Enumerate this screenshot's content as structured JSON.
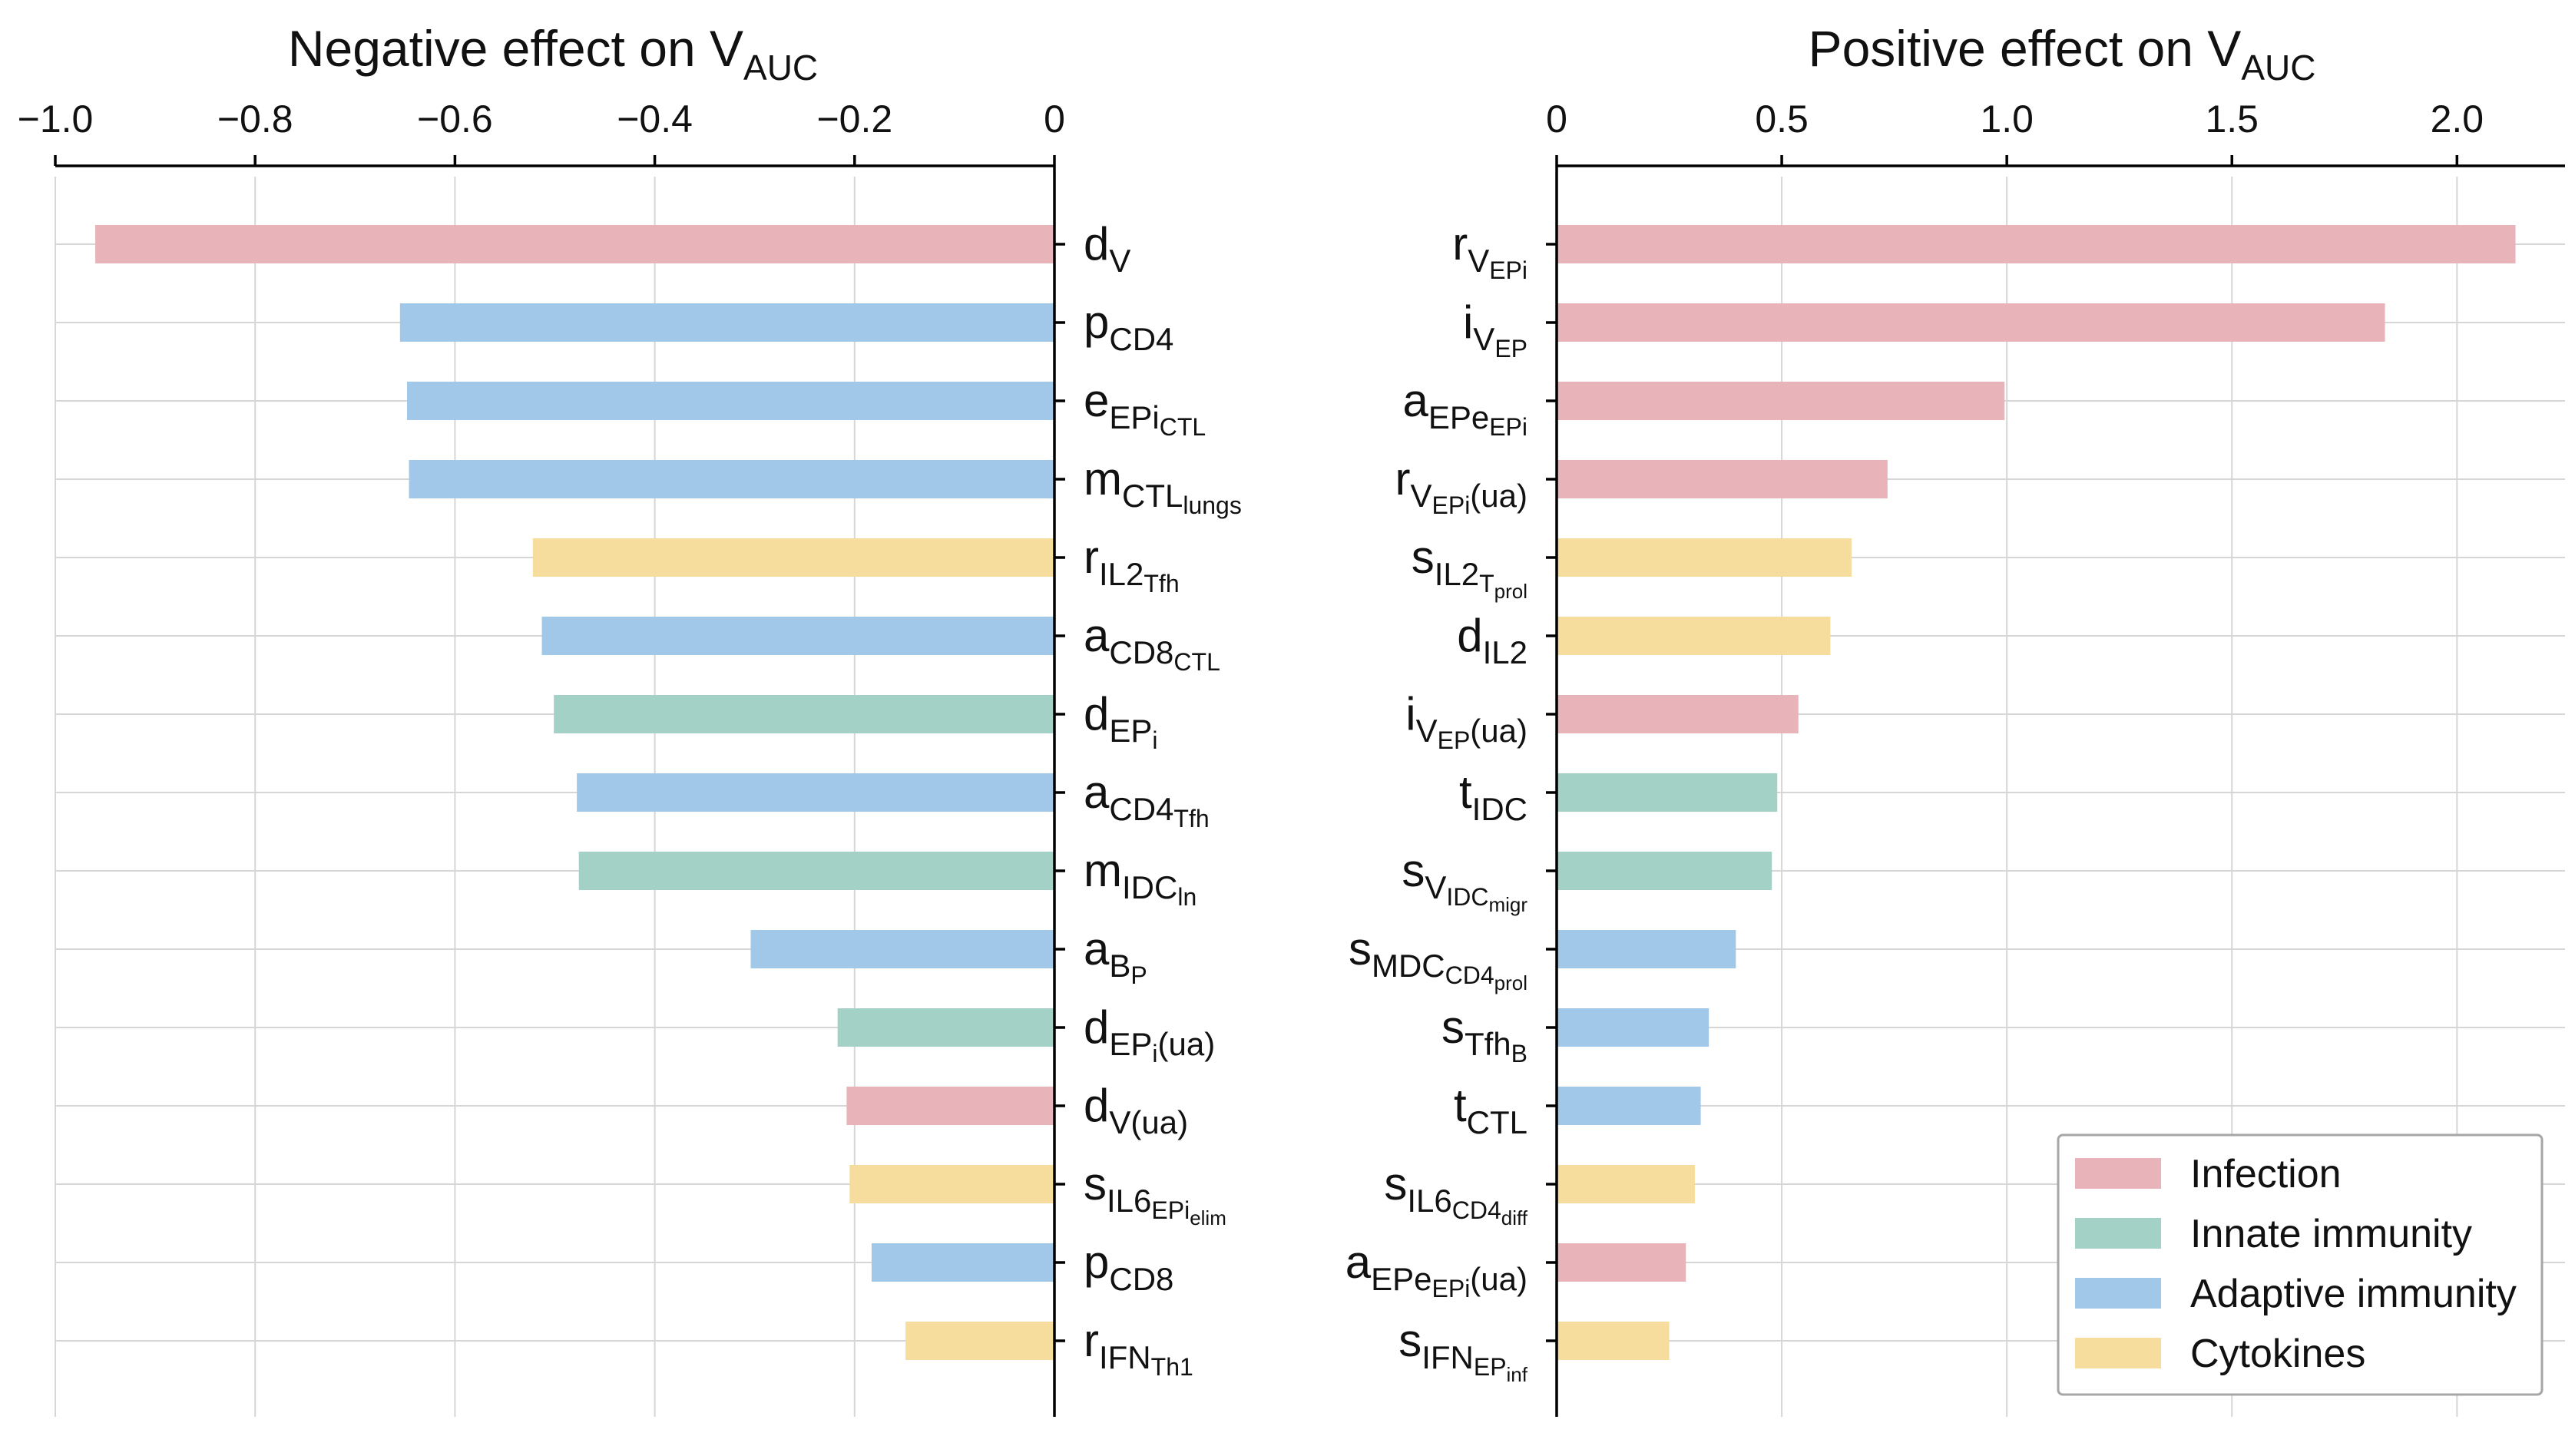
{
  "colors": {
    "Infection": "#e8b4ba",
    "Innate immunity": "#a3d1c5",
    "Adaptive immunity": "#a1c8e8",
    "Cytokines": "#f6dd9e"
  },
  "legend": {
    "placement": "bottom-right",
    "items": [
      "Infection",
      "Innate immunity",
      "Adaptive immunity",
      "Cytokines"
    ]
  },
  "chart_data": [
    {
      "type": "bar",
      "orientation": "horizontal",
      "title": {
        "main": "Negative effect on V",
        "sub": "AUC"
      },
      "xlim": [
        -1.0,
        0
      ],
      "xticks": [
        {
          "value": -1.0,
          "label": "−1.0"
        },
        {
          "value": -0.8,
          "label": "−0.8"
        },
        {
          "value": -0.6,
          "label": "−0.6"
        },
        {
          "value": -0.4,
          "label": "−0.4"
        },
        {
          "value": -0.2,
          "label": "−0.2"
        },
        {
          "value": 0,
          "label": "0"
        }
      ],
      "grid": true,
      "bars": [
        {
          "label": {
            "b": "d",
            "s": "V"
          },
          "value": -0.96,
          "group": "Infection"
        },
        {
          "label": {
            "b": "p",
            "s": "CD4"
          },
          "value": -0.655,
          "group": "Adaptive immunity"
        },
        {
          "label": {
            "b": "e",
            "s": "EPi",
            "ss": "CTL"
          },
          "value": -0.648,
          "group": "Adaptive immunity"
        },
        {
          "label": {
            "b": "m",
            "s": "CTL",
            "ss": "lungs"
          },
          "value": -0.646,
          "group": "Adaptive immunity"
        },
        {
          "label": {
            "b": "r",
            "s": "IL2",
            "ss": "Tfh"
          },
          "value": -0.522,
          "group": "Cytokines"
        },
        {
          "label": {
            "b": "a",
            "s": "CD8",
            "ss": "CTL"
          },
          "value": -0.513,
          "group": "Adaptive immunity"
        },
        {
          "label": {
            "b": "d",
            "s": "EP",
            "ss": "i"
          },
          "value": -0.501,
          "group": "Innate immunity"
        },
        {
          "label": {
            "b": "a",
            "s": "CD4",
            "ss": "Tfh"
          },
          "value": -0.478,
          "group": "Adaptive immunity"
        },
        {
          "label": {
            "b": "m",
            "s": "IDC",
            "ss": "ln"
          },
          "value": -0.476,
          "group": "Innate immunity"
        },
        {
          "label": {
            "b": "a",
            "s": "B",
            "ss": "P"
          },
          "value": -0.304,
          "group": "Adaptive immunity"
        },
        {
          "label": {
            "b": "d",
            "s": "EP",
            "ss": "i",
            "s2": "(ua)"
          },
          "value": -0.217,
          "group": "Innate immunity"
        },
        {
          "label": {
            "b": "d",
            "s": "V(ua)"
          },
          "value": -0.208,
          "group": "Infection"
        },
        {
          "label": {
            "b": "s",
            "s": "IL6",
            "ss": "EPi",
            "sss": "elim"
          },
          "value": -0.205,
          "group": "Cytokines"
        },
        {
          "label": {
            "b": "p",
            "s": "CD8"
          },
          "value": -0.183,
          "group": "Adaptive immunity"
        },
        {
          "label": {
            "b": "r",
            "s": "IFN",
            "ss": "Th1"
          },
          "value": -0.149,
          "group": "Cytokines"
        }
      ]
    },
    {
      "type": "bar",
      "orientation": "horizontal",
      "title": {
        "main": "Positive effect on V",
        "sub": "AUC"
      },
      "xlim": [
        0,
        2.24
      ],
      "xticks": [
        {
          "value": 0,
          "label": "0"
        },
        {
          "value": 0.5,
          "label": "0.5"
        },
        {
          "value": 1.0,
          "label": "1.0"
        },
        {
          "value": 1.5,
          "label": "1.5"
        },
        {
          "value": 2.0,
          "label": "2.0"
        }
      ],
      "grid": true,
      "bars": [
        {
          "label": {
            "b": "r",
            "s": "V",
            "ss": "EPi"
          },
          "value": 2.13,
          "group": "Infection"
        },
        {
          "label": {
            "b": "i",
            "s": "V",
            "ss": "EP"
          },
          "value": 1.84,
          "group": "Infection"
        },
        {
          "label": {
            "b": "a",
            "s": "EPe",
            "ss": "EPi"
          },
          "value": 0.995,
          "group": "Infection"
        },
        {
          "label": {
            "b": "r",
            "s": "V",
            "ss": "EPi",
            "s2": "(ua)"
          },
          "value": 0.735,
          "group": "Infection"
        },
        {
          "label": {
            "b": "s",
            "s": "IL2",
            "ss": "T",
            "sss": "prol"
          },
          "value": 0.655,
          "group": "Cytokines"
        },
        {
          "label": {
            "b": "d",
            "s": "IL2"
          },
          "value": 0.608,
          "group": "Cytokines"
        },
        {
          "label": {
            "b": "i",
            "s": "V",
            "ss": "EP",
            "s2": "(ua)"
          },
          "value": 0.537,
          "group": "Infection"
        },
        {
          "label": {
            "b": "t",
            "s": "IDC"
          },
          "value": 0.49,
          "group": "Innate immunity"
        },
        {
          "label": {
            "b": "s",
            "s": "V",
            "ss": "IDC",
            "sss": "migr"
          },
          "value": 0.478,
          "group": "Innate immunity"
        },
        {
          "label": {
            "b": "s",
            "s": "MDC",
            "ss": "CD4",
            "sss": "prol"
          },
          "value": 0.398,
          "group": "Adaptive immunity"
        },
        {
          "label": {
            "b": "s",
            "s": "Tfh",
            "ss": "B"
          },
          "value": 0.338,
          "group": "Adaptive immunity"
        },
        {
          "label": {
            "b": "t",
            "s": "CTL"
          },
          "value": 0.32,
          "group": "Adaptive immunity"
        },
        {
          "label": {
            "b": "s",
            "s": "IL6",
            "ss": "CD4",
            "sss": "diff"
          },
          "value": 0.307,
          "group": "Cytokines"
        },
        {
          "label": {
            "b": "a",
            "s": "EPe",
            "ss": "EPi",
            "s2": "(ua)"
          },
          "value": 0.287,
          "group": "Infection"
        },
        {
          "label": {
            "b": "s",
            "s": "IFN",
            "ss": "EP",
            "sss": "inf"
          },
          "value": 0.25,
          "group": "Cytokines"
        }
      ]
    }
  ]
}
